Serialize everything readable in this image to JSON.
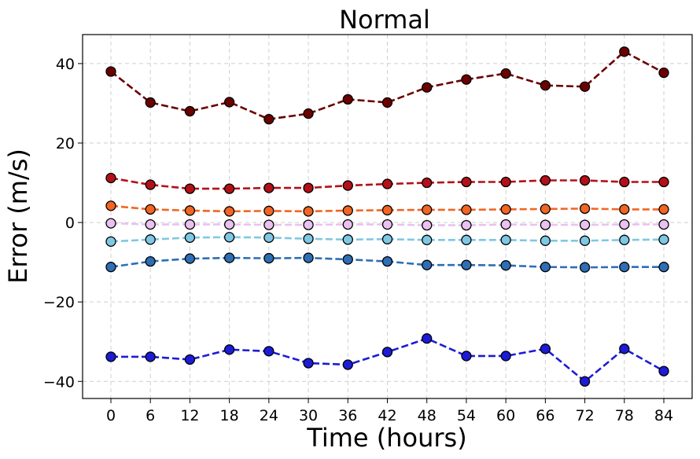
{
  "chart_data": {
    "type": "line",
    "title": "Normal",
    "xlabel": "Time (hours)",
    "ylabel": "Error (m/s)",
    "x": [
      0,
      6,
      12,
      18,
      24,
      30,
      36,
      42,
      48,
      54,
      60,
      66,
      72,
      78,
      84
    ],
    "xlim": [
      -4.3,
      88.3
    ],
    "ylim": [
      -44.3,
      47.3
    ],
    "yticks": [
      -40,
      -20,
      0,
      20,
      40
    ],
    "ytick_labels": [
      "−40",
      "−20",
      "0",
      "20",
      "40"
    ],
    "grid": true,
    "line_style": "dashed",
    "series": [
      {
        "color": "#6b0000",
        "values": [
          38.0,
          30.2,
          28.0,
          30.3,
          26.0,
          27.4,
          31.0,
          30.2,
          34.0,
          36.0,
          37.5,
          34.5,
          34.2,
          43.0,
          37.7
        ]
      },
      {
        "color": "#b31018",
        "values": [
          11.2,
          9.5,
          8.5,
          8.5,
          8.7,
          8.7,
          9.3,
          9.7,
          10.0,
          10.2,
          10.2,
          10.6,
          10.6,
          10.2,
          10.2
        ]
      },
      {
        "color": "#f26522",
        "values": [
          4.2,
          3.3,
          3.0,
          2.8,
          2.9,
          2.8,
          3.0,
          3.1,
          3.2,
          3.2,
          3.3,
          3.4,
          3.5,
          3.3,
          3.3
        ]
      },
      {
        "color": "#e9c2f0",
        "values": [
          -0.2,
          -0.5,
          -0.5,
          -0.5,
          -0.6,
          -0.6,
          -0.5,
          -0.5,
          -0.7,
          -0.7,
          -0.5,
          -0.6,
          -0.6,
          -0.5,
          -0.5
        ]
      },
      {
        "color": "#7ec8e3",
        "values": [
          -4.8,
          -4.3,
          -3.8,
          -3.7,
          -3.8,
          -4.1,
          -4.3,
          -4.2,
          -4.4,
          -4.4,
          -4.4,
          -4.6,
          -4.6,
          -4.4,
          -4.3
        ]
      },
      {
        "color": "#2e6eb5",
        "values": [
          -11.2,
          -9.8,
          -9.1,
          -8.9,
          -9.0,
          -8.9,
          -9.3,
          -9.8,
          -10.7,
          -10.7,
          -10.8,
          -11.2,
          -11.3,
          -11.2,
          -11.2
        ]
      },
      {
        "color": "#1c1cd6",
        "values": [
          -33.8,
          -33.8,
          -34.5,
          -32.0,
          -32.4,
          -35.4,
          -35.8,
          -32.6,
          -29.2,
          -33.6,
          -33.6,
          -31.8,
          -40.0,
          -31.8,
          -37.4
        ]
      }
    ]
  }
}
